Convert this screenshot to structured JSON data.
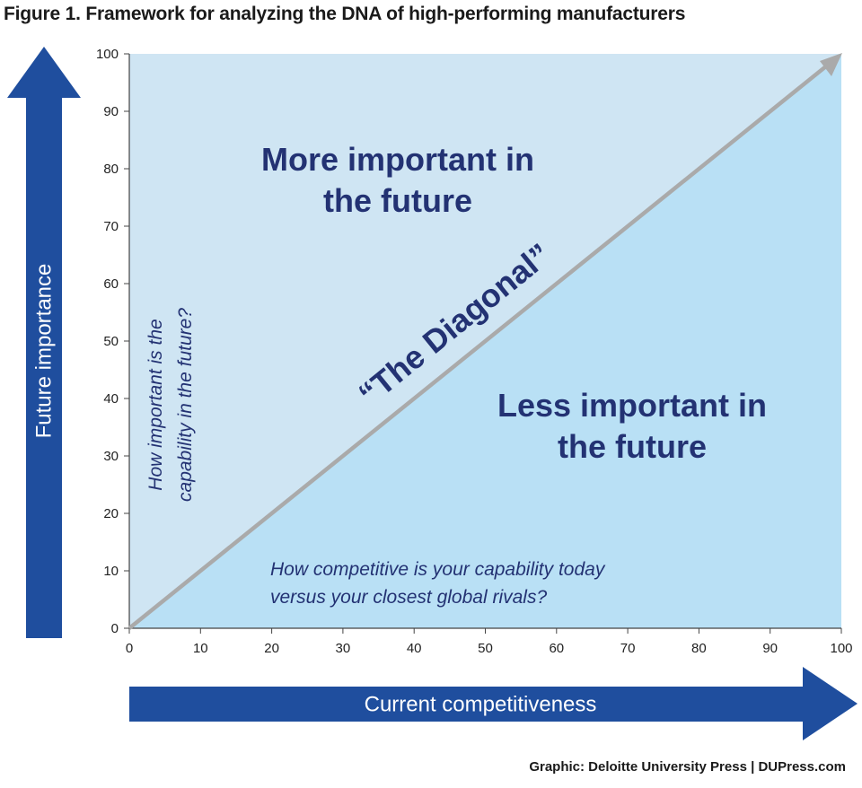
{
  "title": "Figure 1. Framework for analyzing the DNA of high-performing manufacturers",
  "credit": "Graphic: Deloitte University Press  |  DUPress.com",
  "colors": {
    "upper_region": "#cfe5f3",
    "lower_region": "#b9e0f5",
    "diagonal": "#aaaaaa",
    "arrow": "#1f4e9e",
    "text": "#233273"
  },
  "axes": {
    "x_label": "Current competitiveness",
    "y_label": "Future importance",
    "x_ticks": [
      "0",
      "10",
      "20",
      "30",
      "40",
      "50",
      "60",
      "70",
      "80",
      "90",
      "100"
    ],
    "y_ticks": [
      "0",
      "10",
      "20",
      "30",
      "40",
      "50",
      "60",
      "70",
      "80",
      "90",
      "100"
    ],
    "x_range": [
      0,
      100
    ],
    "y_range": [
      0,
      100
    ]
  },
  "regions": {
    "upper_line1": "More important in",
    "upper_line2": "the future",
    "lower_line1": "Less important in",
    "lower_line2": "the future"
  },
  "diagonal_label": "“The Diagonal”",
  "questions": {
    "vertical_line1": "How important is the",
    "vertical_line2": "capability in the future?",
    "horizontal_line1": "How competitive is your capability today",
    "horizontal_line2": "versus your closest global rivals?"
  }
}
